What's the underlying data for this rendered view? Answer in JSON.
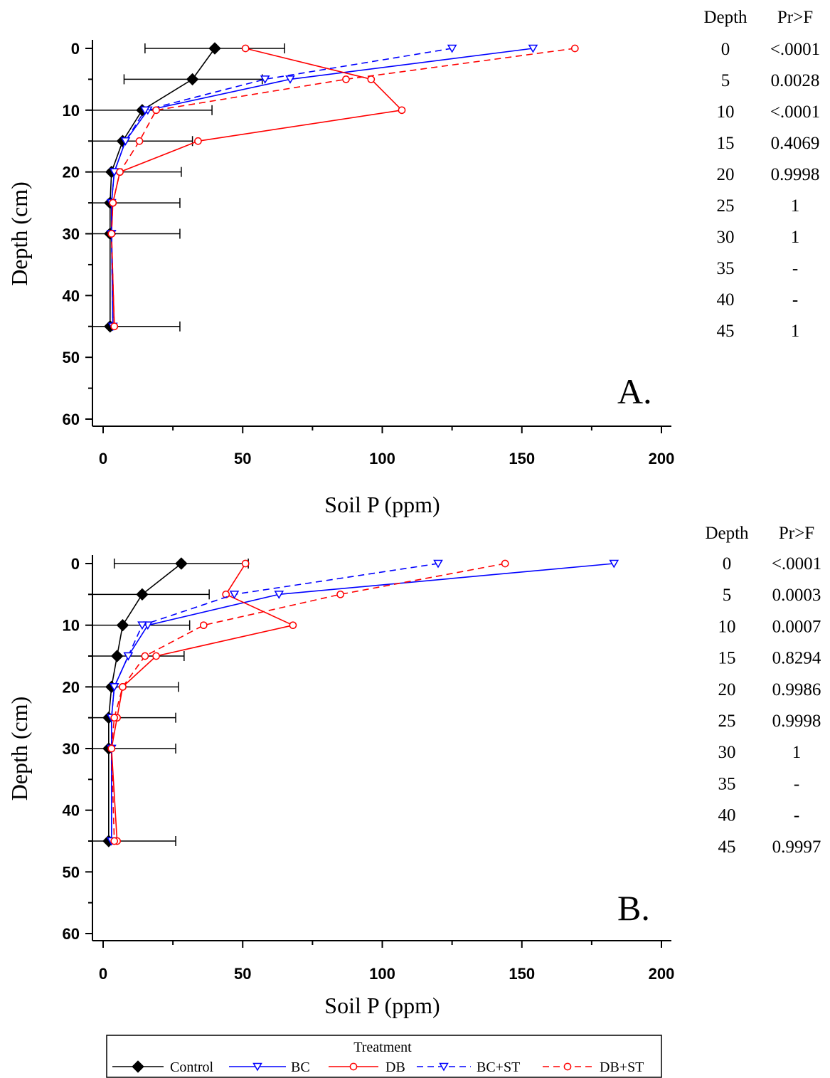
{
  "chart_data": [
    {
      "type": "line",
      "panel_label": "A.",
      "xlabel": "Soil P (ppm)",
      "ylabel": "Depth (cm)",
      "xlim": [
        0,
        200
      ],
      "ylim": [
        60,
        0
      ],
      "x_ticks": [
        "0",
        "50",
        "100",
        "150",
        "200"
      ],
      "y_ticks": [
        "0",
        "10",
        "20",
        "30",
        "40",
        "50",
        "60"
      ],
      "depths": [
        0,
        5,
        10,
        15,
        20,
        25,
        30,
        45
      ],
      "series": [
        {
          "name": "Control",
          "color": "#000000",
          "dash": false,
          "marker": "diamond",
          "x": [
            40,
            32,
            14,
            7,
            3,
            2.5,
            2.5,
            2.5
          ],
          "err_lo": [
            15,
            7.5,
            0,
            0,
            0,
            0,
            0,
            0
          ],
          "err_hi": [
            65,
            57,
            39,
            32,
            28,
            27.5,
            27.5,
            27.5
          ]
        },
        {
          "name": "BC",
          "color": "#0000ff",
          "dash": false,
          "marker": "triangle",
          "x": [
            154,
            67,
            16,
            8,
            4,
            3,
            3,
            3.5
          ]
        },
        {
          "name": "DB",
          "color": "#ff0000",
          "dash": false,
          "marker": "circle",
          "x": [
            51,
            96,
            107,
            34,
            6,
            3.5,
            3,
            4
          ]
        },
        {
          "name": "BC+ST",
          "color": "#0000ff",
          "dash": true,
          "marker": "triangle",
          "x": [
            125,
            58,
            15,
            8,
            4,
            3,
            3,
            3.5
          ]
        },
        {
          "name": "DB+ST",
          "color": "#ff0000",
          "dash": true,
          "marker": "circle",
          "x": [
            169,
            87,
            19,
            13,
            6,
            3.5,
            3,
            4
          ]
        }
      ],
      "table": {
        "headers": [
          "Depth",
          "Pr>F"
        ],
        "rows": [
          [
            "0",
            "<.0001"
          ],
          [
            "5",
            "0.0028"
          ],
          [
            "10",
            "<.0001"
          ],
          [
            "15",
            "0.4069"
          ],
          [
            "20",
            "0.9998"
          ],
          [
            "25",
            "1"
          ],
          [
            "30",
            "1"
          ],
          [
            "35",
            "-"
          ],
          [
            "40",
            "-"
          ],
          [
            "45",
            "1"
          ]
        ]
      }
    },
    {
      "type": "line",
      "panel_label": "B.",
      "xlabel": "Soil P (ppm)",
      "ylabel": "Depth (cm)",
      "xlim": [
        0,
        200
      ],
      "ylim": [
        60,
        0
      ],
      "x_ticks": [
        "0",
        "50",
        "100",
        "150",
        "200"
      ],
      "y_ticks": [
        "0",
        "10",
        "20",
        "30",
        "40",
        "50",
        "60"
      ],
      "depths": [
        0,
        5,
        10,
        15,
        20,
        25,
        30,
        45
      ],
      "series": [
        {
          "name": "Control",
          "color": "#000000",
          "dash": false,
          "marker": "diamond",
          "x": [
            28,
            14,
            7,
            5,
            3,
            2,
            2,
            2
          ],
          "err_lo": [
            4,
            0,
            0,
            0,
            0,
            0,
            0,
            0
          ],
          "err_hi": [
            52,
            38,
            31,
            29,
            27,
            26,
            26,
            26
          ]
        },
        {
          "name": "BC",
          "color": "#0000ff",
          "dash": false,
          "marker": "triangle",
          "x": [
            183,
            63,
            16,
            9,
            4,
            3,
            3,
            3
          ]
        },
        {
          "name": "DB",
          "color": "#ff0000",
          "dash": false,
          "marker": "circle",
          "x": [
            51,
            44,
            68,
            19,
            7,
            5,
            3,
            5
          ]
        },
        {
          "name": "BC+ST",
          "color": "#0000ff",
          "dash": true,
          "marker": "triangle",
          "x": [
            120,
            47,
            14,
            9,
            4,
            3,
            3,
            3
          ]
        },
        {
          "name": "DB+ST",
          "color": "#ff0000",
          "dash": true,
          "marker": "circle",
          "x": [
            144,
            85,
            36,
            15,
            7,
            4,
            3,
            4
          ]
        }
      ],
      "table": {
        "headers": [
          "Depth",
          "Pr>F"
        ],
        "rows": [
          [
            "0",
            "<.0001"
          ],
          [
            "5",
            "0.0003"
          ],
          [
            "10",
            "0.0007"
          ],
          [
            "15",
            "0.8294"
          ],
          [
            "20",
            "0.9986"
          ],
          [
            "25",
            "0.9998"
          ],
          [
            "30",
            "1"
          ],
          [
            "35",
            "-"
          ],
          [
            "40",
            "-"
          ],
          [
            "45",
            "0.9997"
          ]
        ]
      }
    }
  ],
  "legend": {
    "title": "Treatment",
    "entries": [
      "Control",
      "BC",
      "DB",
      "BC+ST",
      "DB+ST"
    ]
  }
}
